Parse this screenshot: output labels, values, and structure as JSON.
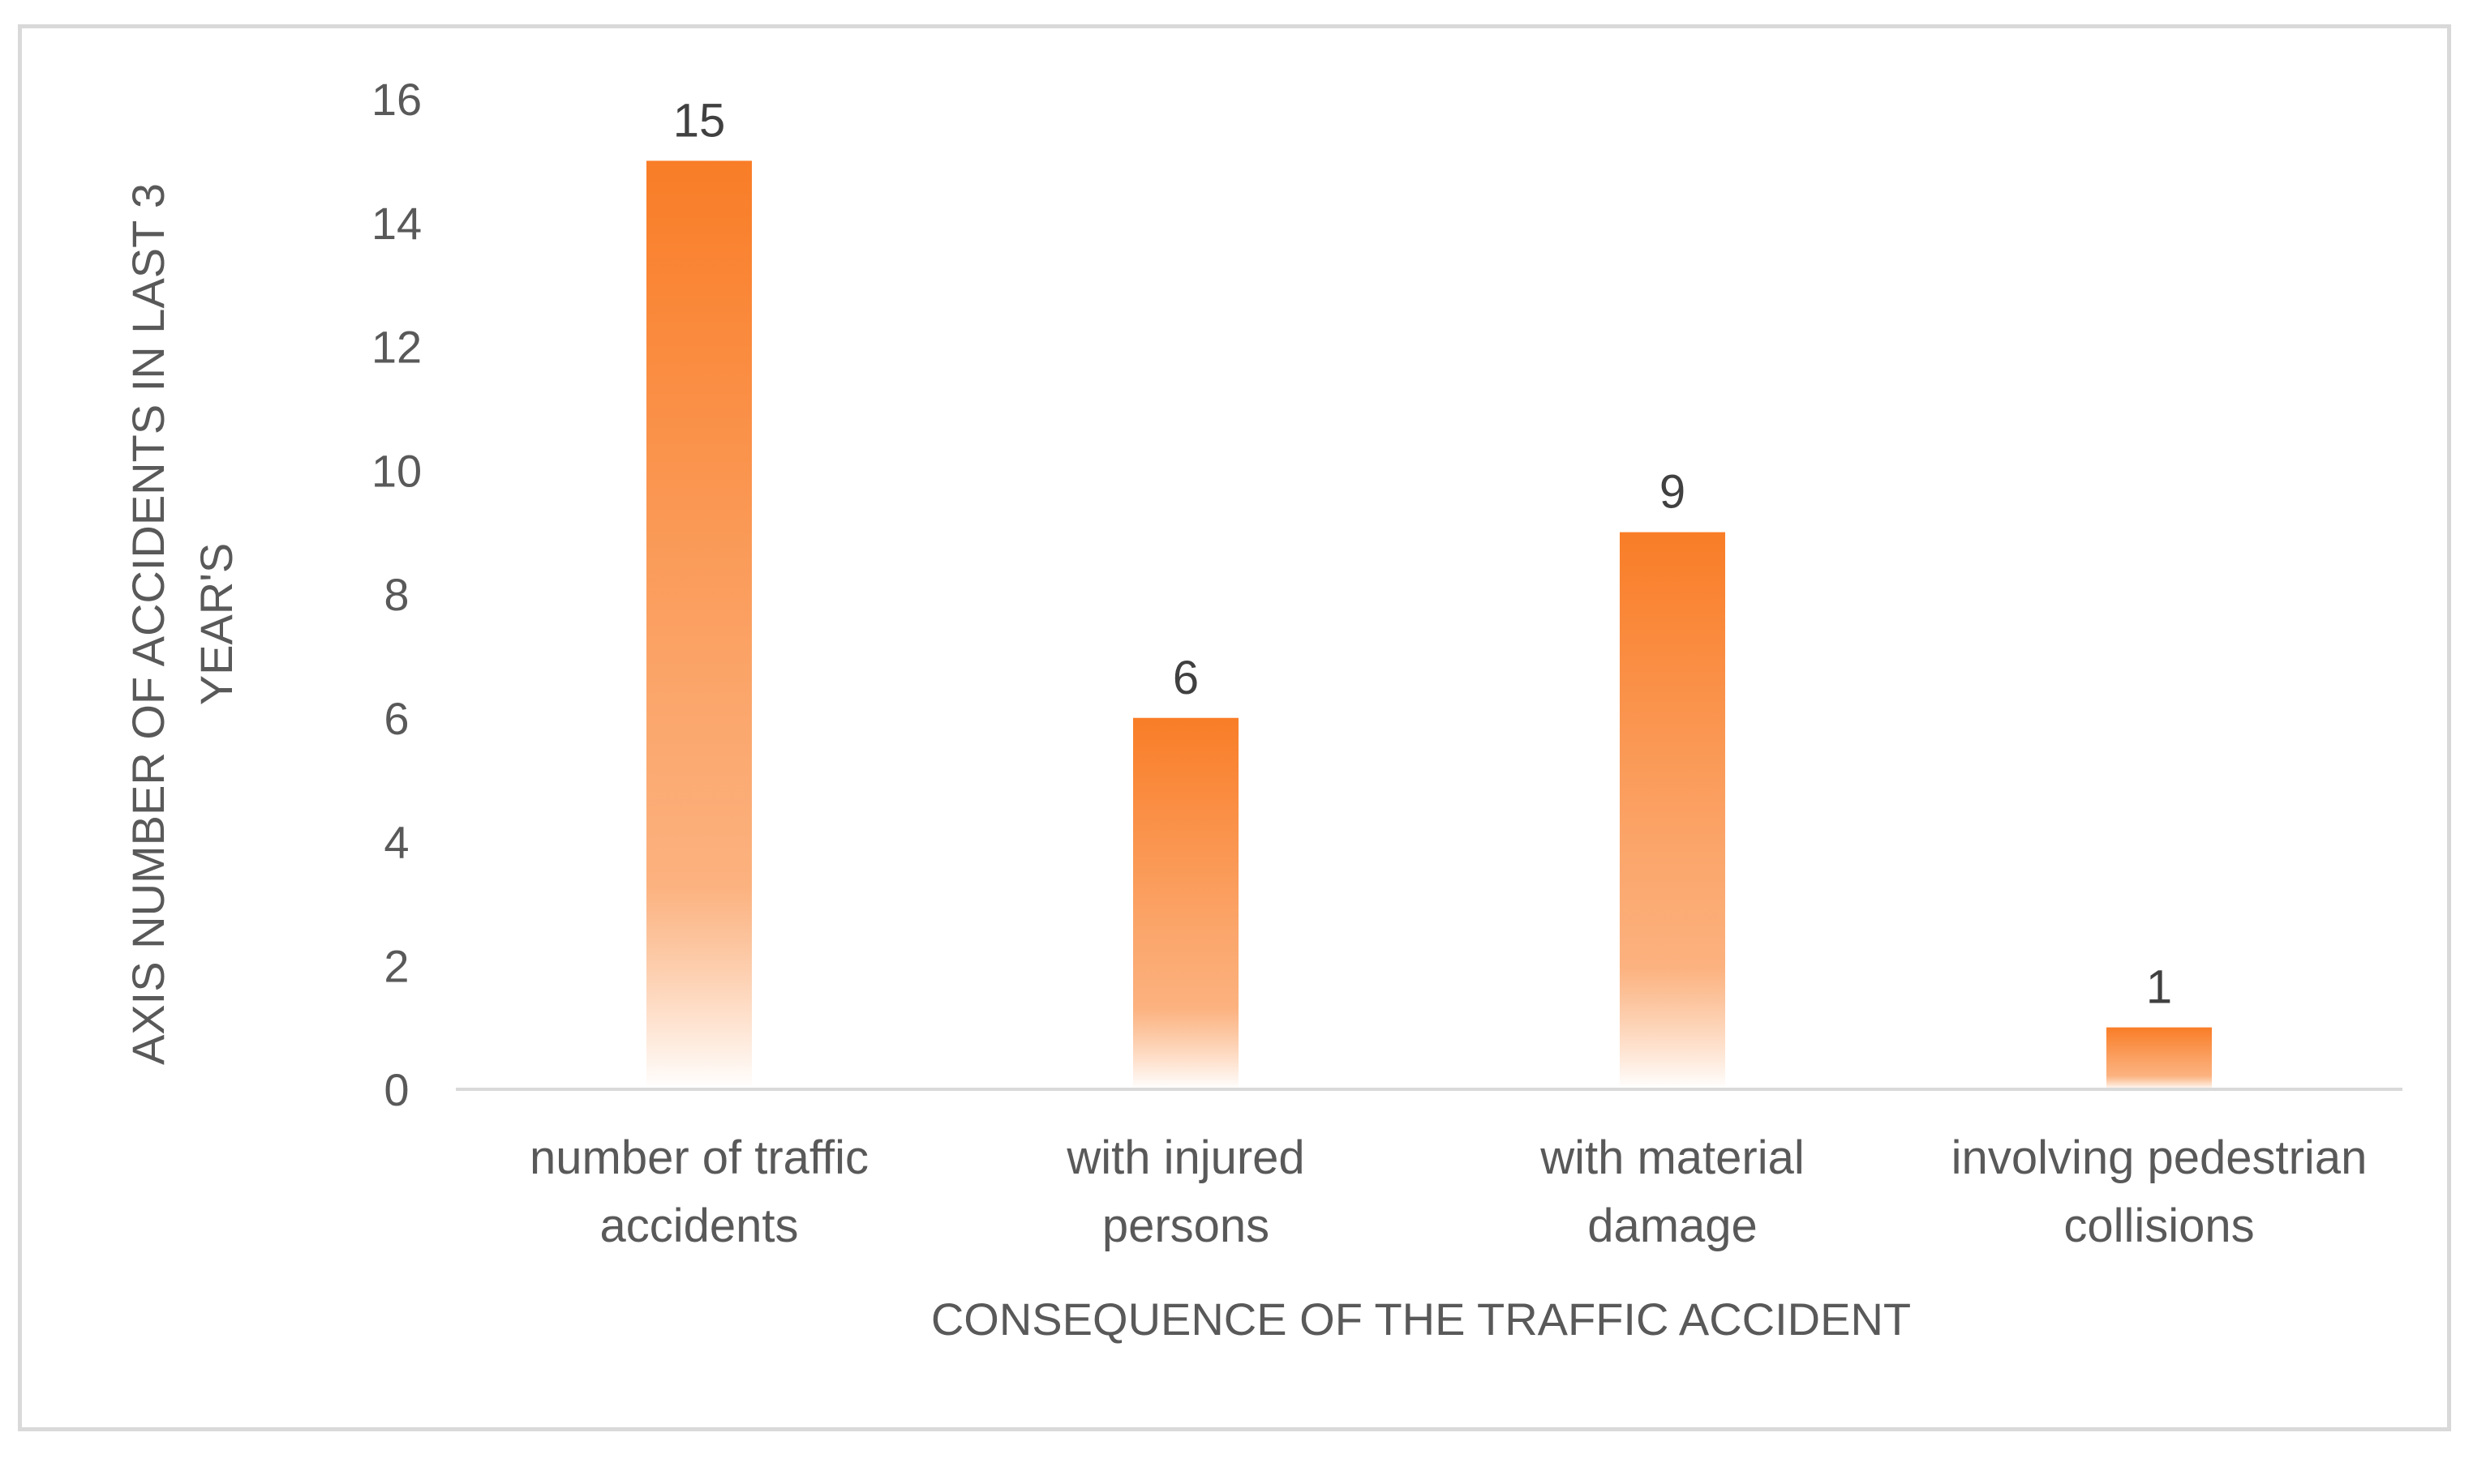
{
  "chart_data": {
    "type": "bar",
    "title": "",
    "categories": [
      [
        "number of traffic",
        "accidents"
      ],
      [
        "with injured",
        "persons"
      ],
      [
        "with material",
        "damage"
      ],
      [
        "involving pedestrian",
        "collisions"
      ]
    ],
    "values": [
      15,
      6,
      9,
      1
    ],
    "data_labels": [
      "15",
      "6",
      "9",
      "1"
    ],
    "xlabel": "CONSEQUENCE OF THE TRAFFIC ACCIDENT",
    "ylabel": [
      "AXIS NUMBER OF ACCIDENTS  IN LAST 3",
      "YEAR'S"
    ],
    "ylim": [
      0,
      16
    ],
    "yticks": [
      0,
      2,
      4,
      6,
      8,
      10,
      12,
      14,
      16
    ],
    "grid": false,
    "legend": "none",
    "colors": {
      "bar_top": "#f97d27",
      "bar_mid": "#fba468",
      "bar_bottom": "#ffffff",
      "axis": "#d9d9d9",
      "text": "#595959",
      "frame": "#d9d9d9"
    }
  }
}
